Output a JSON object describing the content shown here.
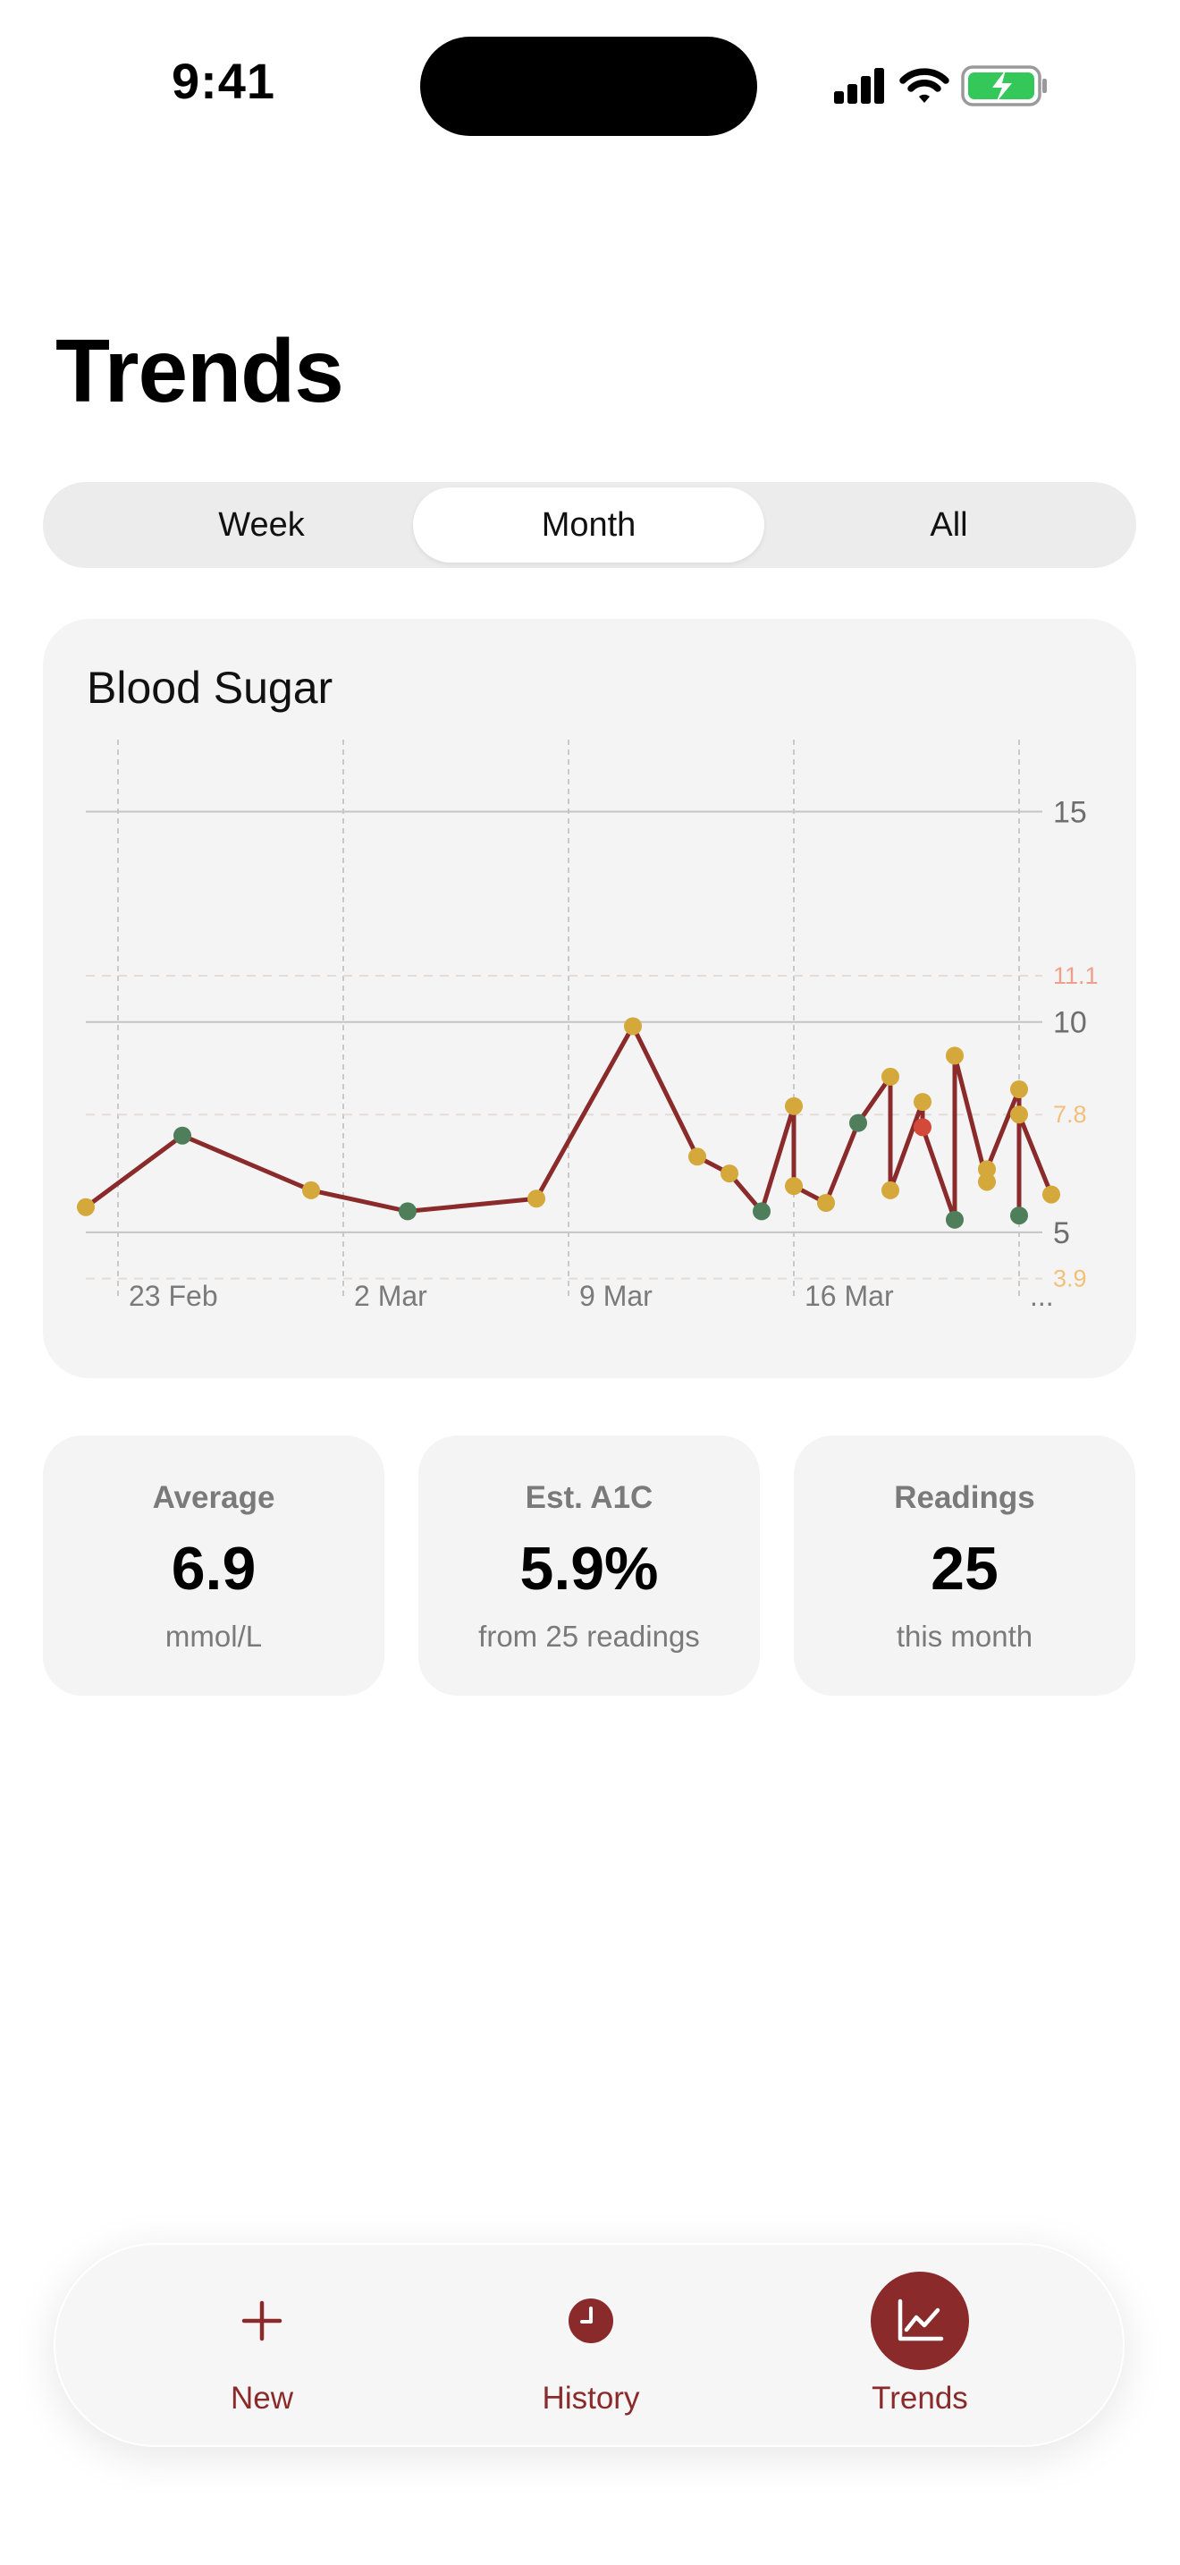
{
  "status_bar": {
    "time": "9:41"
  },
  "page": {
    "title": "Trends"
  },
  "segmented": {
    "options": [
      "Week",
      "Month",
      "All"
    ],
    "selected": "Month"
  },
  "chart_card": {
    "title": "Blood Sugar"
  },
  "chart_data": {
    "type": "line",
    "title": "Blood Sugar",
    "x_axis": {
      "type": "date",
      "range": [
        "2025-02-22",
        "2025-03-24"
      ],
      "tick_labels": [
        "23 Feb",
        "2 Mar",
        "9 Mar",
        "16 Mar",
        "..."
      ]
    },
    "y_axis": {
      "range": [
        3.0,
        16.5
      ],
      "tick_values": [
        5,
        10,
        15
      ],
      "tick_labels": [
        "5",
        "10",
        "15"
      ],
      "position": "right"
    },
    "reference_lines": [
      {
        "value": 11.1,
        "label": "11.1",
        "color": "#f0a08a"
      },
      {
        "value": 7.8,
        "label": "7.8",
        "color": "#f2c07a"
      },
      {
        "value": 3.9,
        "label": "3.9",
        "color": "#f2c07a"
      }
    ],
    "grid": true,
    "line_color": "#8b2a2a",
    "point_colors": {
      "in_range": "#4e7f5a",
      "elevated": "#d4a83a",
      "high": "#d44a3a"
    },
    "series": [
      {
        "points": [
          {
            "x": "2025-02-22",
            "y": 5.6,
            "status": "elevated"
          },
          {
            "x": "2025-02-25",
            "y": 7.3,
            "status": "in_range"
          },
          {
            "x": "2025-03-01",
            "y": 6.0,
            "status": "elevated"
          },
          {
            "x": "2025-03-04",
            "y": 5.5,
            "status": "in_range"
          },
          {
            "x": "2025-03-08",
            "y": 5.8,
            "status": "elevated"
          },
          {
            "x": "2025-03-11",
            "y": 9.9,
            "status": "elevated"
          },
          {
            "x": "2025-03-13",
            "y": 6.8,
            "status": "elevated"
          },
          {
            "x": "2025-03-14",
            "y": 6.4,
            "status": "elevated"
          },
          {
            "x": "2025-03-15",
            "y": 5.5,
            "status": "in_range"
          },
          {
            "x": "2025-03-16",
            "y": 8.0,
            "status": "elevated"
          },
          {
            "x": "2025-03-16",
            "y": 6.1,
            "status": "elevated"
          },
          {
            "x": "2025-03-17",
            "y": 5.7,
            "status": "elevated"
          },
          {
            "x": "2025-03-18",
            "y": 7.6,
            "status": "in_range"
          },
          {
            "x": "2025-03-19",
            "y": 8.7,
            "status": "elevated"
          },
          {
            "x": "2025-03-19",
            "y": 6.0,
            "status": "elevated"
          },
          {
            "x": "2025-03-20",
            "y": 8.1,
            "status": "elevated"
          },
          {
            "x": "2025-03-20",
            "y": 7.5,
            "status": "high"
          },
          {
            "x": "2025-03-21",
            "y": 5.3,
            "status": "in_range"
          },
          {
            "x": "2025-03-21",
            "y": 9.2,
            "status": "elevated"
          },
          {
            "x": "2025-03-22",
            "y": 6.2,
            "status": "elevated"
          },
          {
            "x": "2025-03-22",
            "y": 6.5,
            "status": "elevated"
          },
          {
            "x": "2025-03-23",
            "y": 8.4,
            "status": "elevated"
          },
          {
            "x": "2025-03-23",
            "y": 5.4,
            "status": "in_range"
          },
          {
            "x": "2025-03-23",
            "y": 7.8,
            "status": "elevated"
          },
          {
            "x": "2025-03-24",
            "y": 5.9,
            "status": "elevated"
          }
        ]
      }
    ]
  },
  "stats": [
    {
      "label": "Average",
      "value": "6.9",
      "sub": "mmol/L"
    },
    {
      "label": "Est. A1C",
      "value": "5.9%",
      "sub": "from 25 readings"
    },
    {
      "label": "Readings",
      "value": "25",
      "sub": "this month"
    }
  ],
  "tab_bar": {
    "items": [
      {
        "label": "New",
        "icon": "plus-icon"
      },
      {
        "label": "History",
        "icon": "clock-icon"
      },
      {
        "label": "Trends",
        "icon": "chart-icon"
      }
    ],
    "selected": "Trends",
    "accent": "#8b2a2a"
  }
}
